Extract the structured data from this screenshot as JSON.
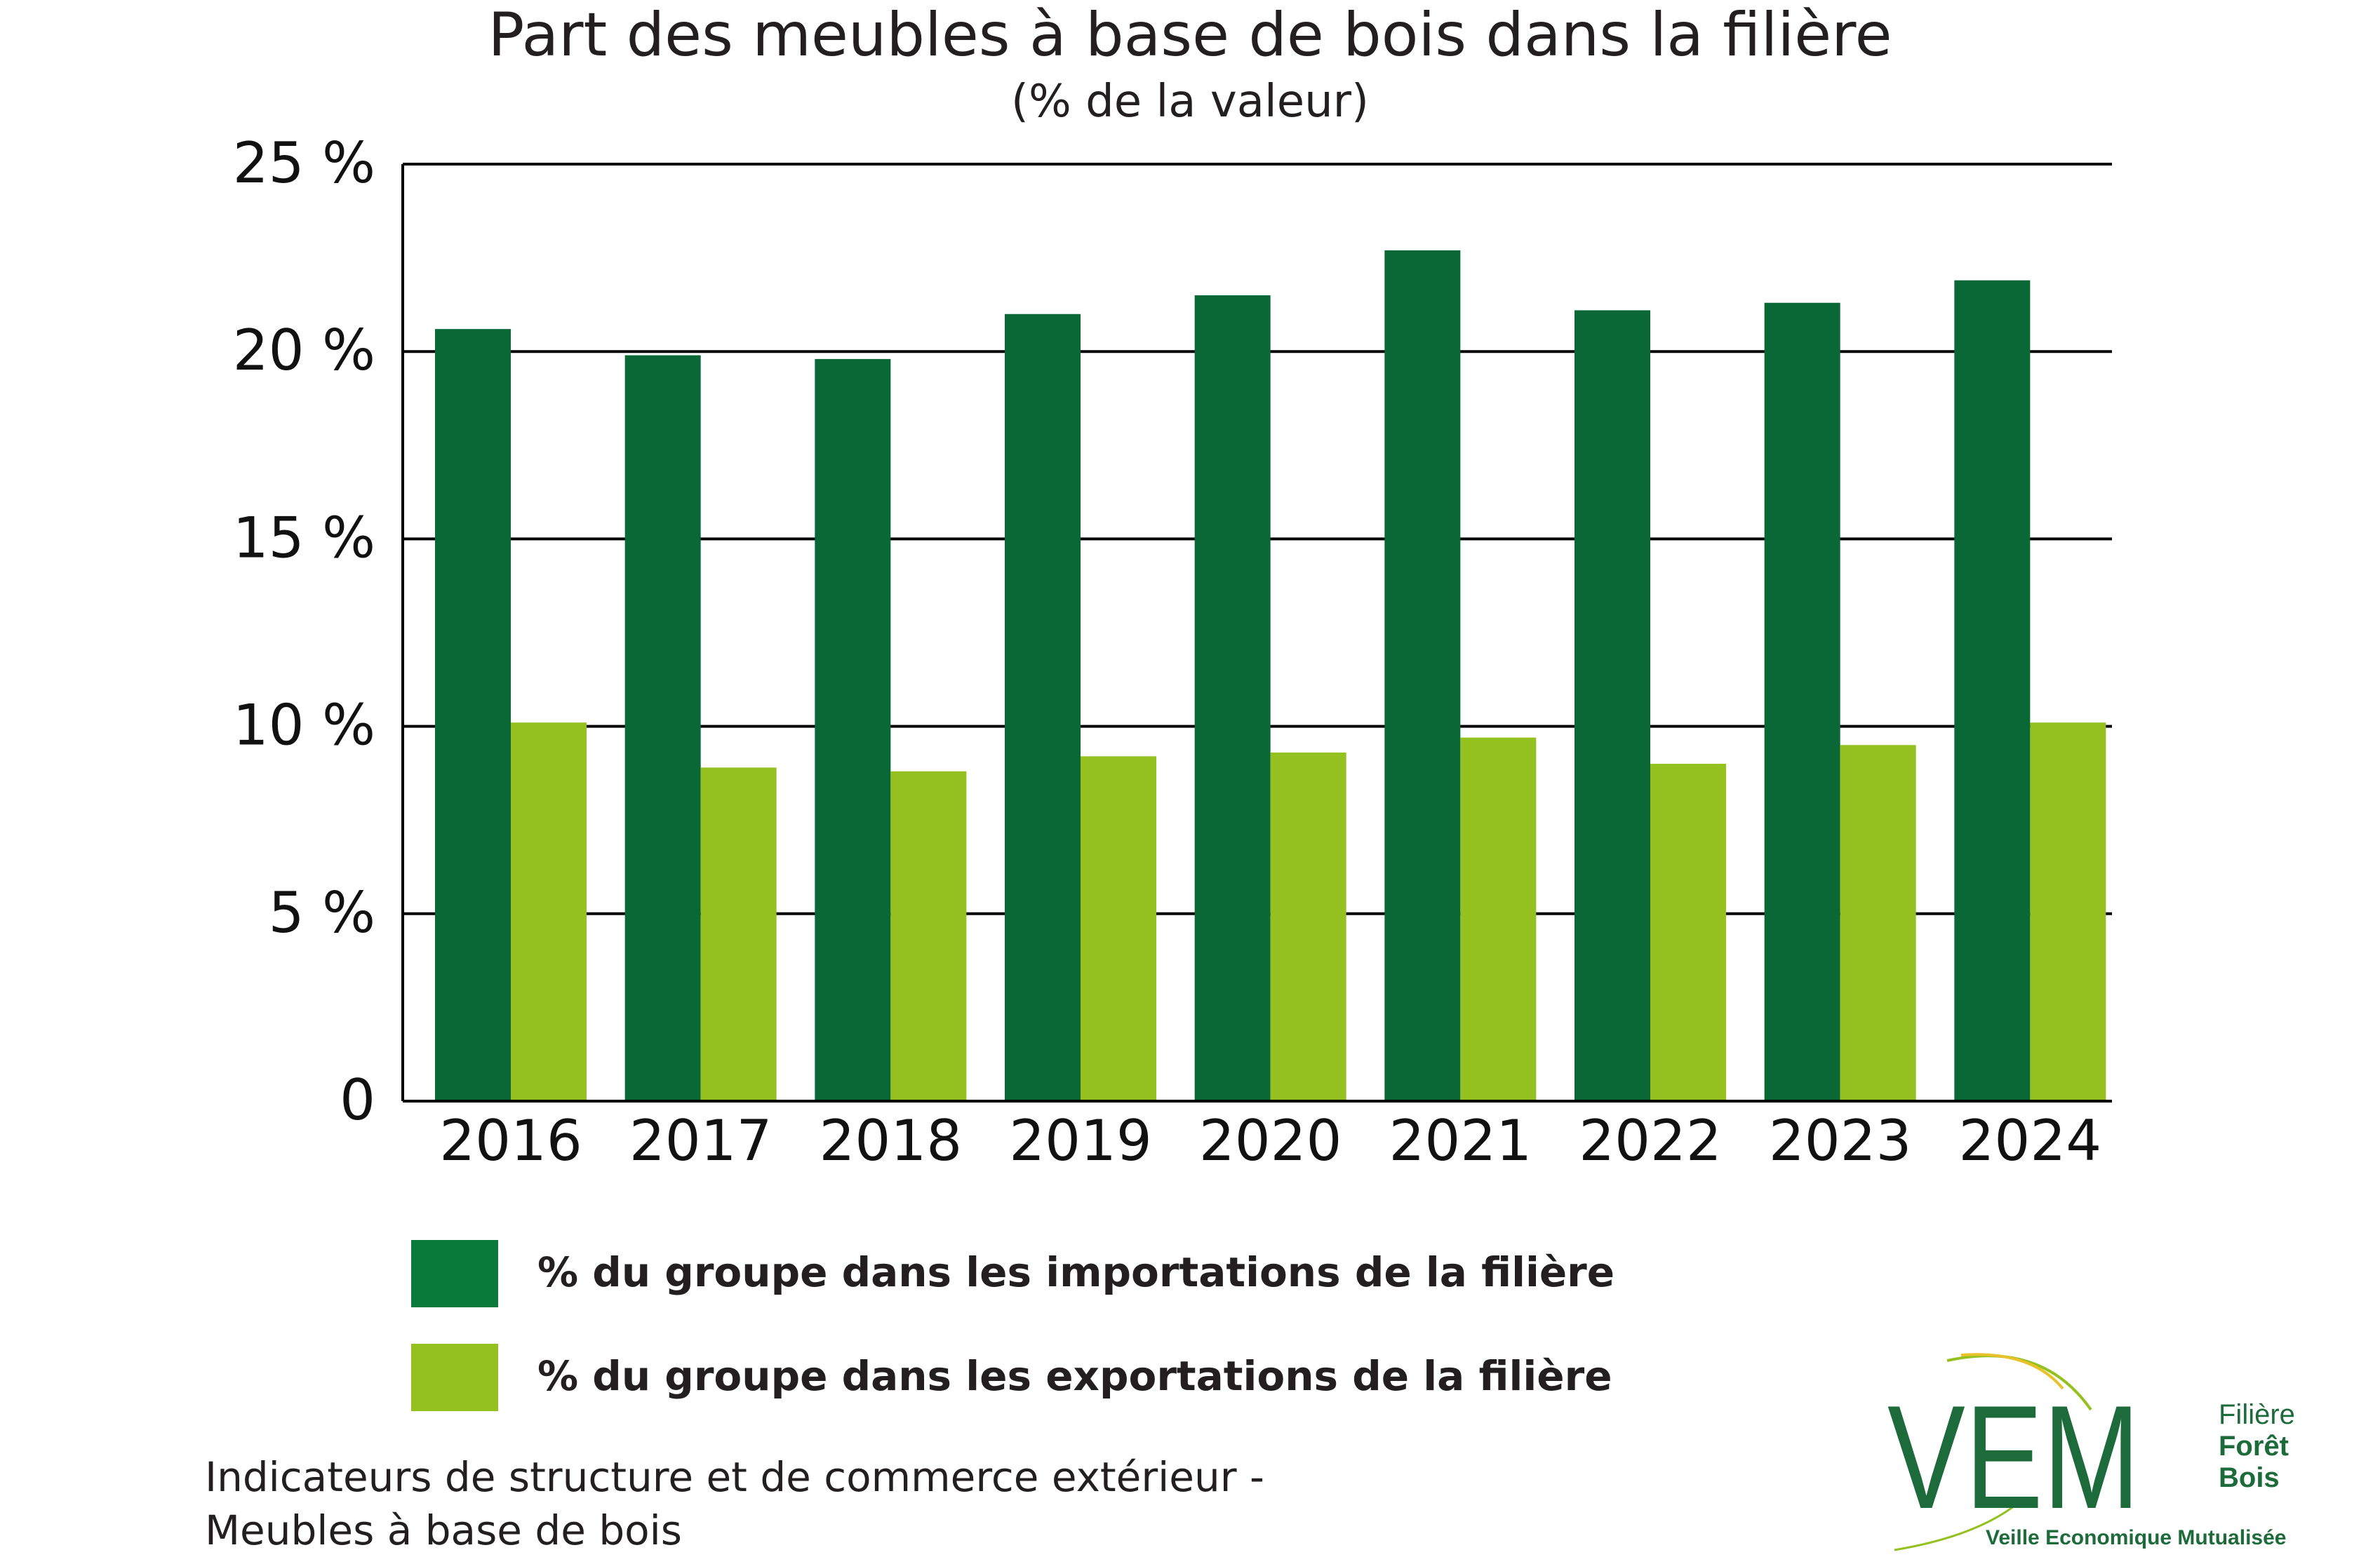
{
  "title": "Part des meubles à base de bois dans la filière",
  "subtitle": "(% de la valeur)",
  "chart_data": {
    "type": "bar",
    "categories": [
      "2016",
      "2017",
      "2018",
      "2019",
      "2020",
      "2021",
      "2022",
      "2023",
      "2024"
    ],
    "series": [
      {
        "name": "% du groupe dans les importations de la filière",
        "color": "#0a6836",
        "values": [
          20.6,
          19.9,
          19.8,
          21.0,
          21.5,
          22.7,
          21.1,
          21.3,
          21.9
        ]
      },
      {
        "name": "% du groupe dans les exportations de la filière",
        "color": "#94c120",
        "values": [
          10.1,
          8.9,
          8.8,
          9.2,
          9.3,
          9.7,
          9.0,
          9.5,
          10.1
        ]
      }
    ],
    "ylim": [
      0,
      25
    ],
    "yticks": [
      {
        "value": 0,
        "label": "0"
      },
      {
        "value": 5,
        "label": "5 %"
      },
      {
        "value": 10,
        "label": "10 %"
      },
      {
        "value": 15,
        "label": "15 %"
      },
      {
        "value": 20,
        "label": "20 %"
      },
      {
        "value": 25,
        "label": "25 %"
      }
    ],
    "grid": true,
    "legend_position": "bottom-left"
  },
  "legend": {
    "import_label": "% du groupe dans les importations de la filière",
    "export_label": "% du groupe dans les exportations de la filière",
    "import_color": "#0a7a3a",
    "export_color": "#94c120"
  },
  "footer": {
    "line1": "Indicateurs de structure et de commerce extérieur -",
    "line2": "Meubles à base de bois"
  },
  "logo": {
    "mark": "VEM",
    "line1": "Filière",
    "line2": "Forêt",
    "line3": "Bois",
    "tagline": "Veille Economique Mutualisée"
  }
}
